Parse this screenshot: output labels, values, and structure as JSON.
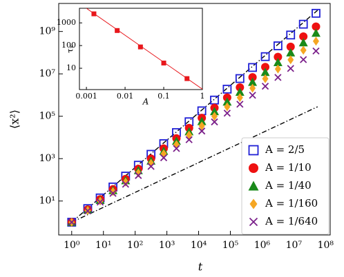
{
  "chart_data": {
    "type": "scatter",
    "xlabel": "t",
    "ylabel": "⟨x²⟩",
    "log_x": true,
    "log_y": true,
    "xlim": [
      0.39,
      140000000
    ],
    "ylim": [
      0.25,
      21000000000
    ],
    "xticks": [
      {
        "value": 1,
        "label": "10⁰"
      },
      {
        "value": 10,
        "label": "10¹"
      },
      {
        "value": 100,
        "label": "10²"
      },
      {
        "value": 1000,
        "label": "10³"
      },
      {
        "value": 10000,
        "label": "10⁴"
      },
      {
        "value": 100000,
        "label": "10⁵"
      },
      {
        "value": 1000000,
        "label": "10⁶"
      },
      {
        "value": 10000000,
        "label": "10⁷"
      },
      {
        "value": 100000000,
        "label": "10⁸"
      }
    ],
    "yticks": [
      {
        "value": 10,
        "label": "10¹"
      },
      {
        "value": 1000,
        "label": "10³"
      },
      {
        "value": 100000,
        "label": "10⁵"
      },
      {
        "value": 10000000,
        "label": "10⁷"
      },
      {
        "value": 1000000000,
        "label": "10⁹"
      }
    ],
    "legend": "lower right",
    "x": [
      1,
      3.2,
      7.9,
      20,
      50,
      126,
      316,
      794,
      2000,
      5000,
      12600,
      31600,
      79400,
      200000,
      500000,
      1260000,
      3160000,
      7940000,
      20000000,
      50000000
    ],
    "series": [
      {
        "name": "A = 2/5",
        "color": "#1f1fd6",
        "marker": "square-open",
        "values": [
          1,
          4.4,
          14,
          46,
          150,
          490,
          1600,
          5100,
          17000,
          55000,
          180000,
          580000,
          1900000,
          6000000,
          20000000,
          65000000,
          210000000,
          680000000,
          2200000000,
          7200000000
        ]
      },
      {
        "name": "A = 1/10",
        "color": "#ee1111",
        "marker": "circle",
        "values": [
          1,
          4,
          12,
          36,
          110,
          330,
          1000,
          3000,
          9100,
          28000,
          83000,
          250000,
          760000,
          2300000,
          6900000,
          21000000,
          63000000,
          190000000,
          580000000,
          1700000000
        ]
      },
      {
        "name": "A = 1/40",
        "color": "#1a8a1a",
        "marker": "triangle",
        "values": [
          1,
          3.8,
          11,
          32,
          93,
          280,
          790,
          2300,
          6800,
          19000,
          58000,
          170000,
          480000,
          1400000,
          4100000,
          12000000,
          35000000,
          100000000,
          300000000,
          850000000
        ]
      },
      {
        "name": "A = 1/160",
        "color": "#f5a623",
        "marker": "diamond",
        "values": [
          1,
          3.6,
          10,
          28,
          78,
          210,
          600,
          1700,
          4600,
          13000,
          35000,
          100000,
          280000,
          760000,
          2100000,
          5900000,
          17000000,
          46000000,
          130000000,
          350000000
        ]
      },
      {
        "name": "A = 1/640",
        "color": "#7a1f8a",
        "marker": "x",
        "values": [
          1,
          3.4,
          8.9,
          23,
          62,
          160,
          430,
          1100,
          3000,
          7800,
          20000,
          54000,
          140000,
          370000,
          980000,
          2600000,
          6800000,
          18000000,
          47000000,
          120000000
        ]
      }
    ],
    "lines": [
      {
        "color": "#000000",
        "style": "dashdot",
        "x": [
          1,
          56000000
        ],
        "y": [
          1,
          280000
        ]
      },
      {
        "color": "#000000",
        "style": "dashdot",
        "x": [
          1,
          56000000
        ],
        "y": [
          1,
          10000000000
        ]
      }
    ],
    "inset": {
      "type": "scatter",
      "xlabel": "A",
      "ylabel": "τₓ",
      "log_x": true,
      "log_y": true,
      "xlim": [
        0.00066,
        1
      ],
      "ylim": [
        1.15,
        4400
      ],
      "xticks": [
        0.001,
        0.01,
        0.1,
        1
      ],
      "yticks": [
        10,
        100,
        1000
      ],
      "color": "#e8171c",
      "x": [
        0.0015625,
        0.00625,
        0.025,
        0.1,
        0.4
      ],
      "values": [
        2500,
        460,
        87,
        17,
        3.5
      ],
      "fit": {
        "x": [
          0.001,
          1
        ],
        "y": [
          4400,
          1.2
        ]
      }
    }
  }
}
